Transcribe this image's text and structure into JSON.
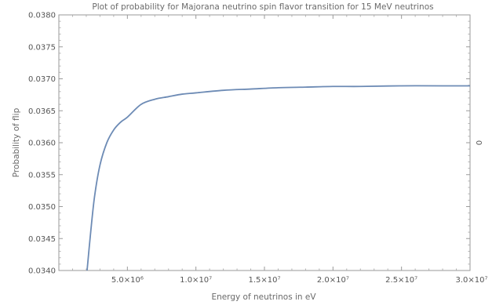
{
  "chart_data": {
    "type": "line",
    "title": "Plot of probability for Majorana neutrino spin flavor transition for 15 MeV neutrinos",
    "xlabel": "Energy of neutrinos in eV",
    "ylabel": "Probability of flip",
    "right_label": "0",
    "xlim": [
      0,
      30000000
    ],
    "ylim": [
      0.034,
      0.038
    ],
    "x_ticks": [
      {
        "value": 5000000,
        "label": "5.0×10⁶"
      },
      {
        "value": 10000000,
        "label": "1.0×10⁷"
      },
      {
        "value": 15000000,
        "label": "1.5×10⁷"
      },
      {
        "value": 20000000,
        "label": "2.0×10⁷"
      },
      {
        "value": 25000000,
        "label": "2.5×10⁷"
      },
      {
        "value": 30000000,
        "label": "3.0×10⁷"
      }
    ],
    "y_ticks": [
      {
        "value": 0.034,
        "label": "0.0340"
      },
      {
        "value": 0.0345,
        "label": "0.0345"
      },
      {
        "value": 0.035,
        "label": "0.0350"
      },
      {
        "value": 0.0355,
        "label": "0.0355"
      },
      {
        "value": 0.036,
        "label": "0.0360"
      },
      {
        "value": 0.0365,
        "label": "0.0365"
      },
      {
        "value": 0.037,
        "label": "0.0370"
      },
      {
        "value": 0.0375,
        "label": "0.0375"
      },
      {
        "value": 0.038,
        "label": "0.0380"
      }
    ],
    "series": [
      {
        "color": "#6d8bb5",
        "x": [
          2050000,
          2300000,
          2600000,
          3000000,
          3500000,
          4000000,
          4500000,
          5000000,
          6000000,
          7000000,
          8000000,
          9000000,
          10000000,
          12000000,
          14000000,
          16000000,
          18000000,
          20000000,
          22000000,
          25000000,
          28000000,
          30000000
        ],
        "y": [
          0.03398,
          0.03455,
          0.03515,
          0.03565,
          0.036,
          0.0362,
          0.03632,
          0.0364,
          0.0366,
          0.03668,
          0.03672,
          0.03676,
          0.03678,
          0.03682,
          0.03684,
          0.03686,
          0.03687,
          0.03688,
          0.03688,
          0.03689,
          0.03689,
          0.03689
        ]
      }
    ]
  }
}
